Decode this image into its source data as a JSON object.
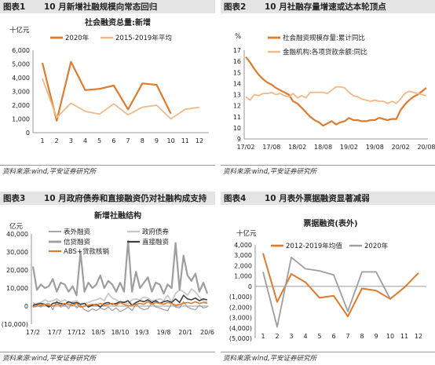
{
  "colors": {
    "orange": "#E07A2C",
    "peach": "#F1B987",
    "grey": "#9E9E9E",
    "dark": "#404040"
  },
  "panels": [
    {
      "num": "图表1",
      "title": "10 月新增社融规模向常态回归",
      "source": "资料来源:wind,平安证券研究所"
    },
    {
      "num": "图表2",
      "title": "10 月社融存量增速或达本轮顶点",
      "source": "资料来源:wind,平安证券研究所"
    },
    {
      "num": "图表3",
      "title": "10 月政府债券和直接融资仍对社融构成支持",
      "source": "资料来源:wind,平安证券研究所"
    },
    {
      "num": "图表4",
      "title": "10 月表外票据融资显著减弱",
      "source": "资料来源:wind,平安证券研究所"
    }
  ],
  "chart_data": [
    {
      "type": "line",
      "title": "社会融资总量:新增",
      "unit": "十亿元",
      "categories": [
        "1",
        "2",
        "3",
        "4",
        "5",
        "6",
        "7",
        "8",
        "9",
        "10",
        "11",
        "12"
      ],
      "yticks": [
        "0",
        "1,000",
        "2,000",
        "3,000",
        "4,000",
        "5,000",
        "6,000"
      ],
      "ylim": [
        0,
        6000
      ],
      "series": [
        {
          "name": "2020年",
          "values": [
            5080,
            870,
            5160,
            3100,
            3190,
            3430,
            1690,
            3580,
            3480,
            1390,
            null,
            null
          ]
        },
        {
          "name": "2015-2019年平均",
          "values": [
            3950,
            1100,
            2150,
            1550,
            1350,
            2100,
            1300,
            1850,
            2000,
            1000,
            1700,
            1850
          ]
        }
      ]
    },
    {
      "type": "line",
      "unit": "%",
      "xticks": [
        "17/02",
        "17/08",
        "18/02",
        "18/08",
        "19/02",
        "19/08",
        "20/02",
        "20/08"
      ],
      "yticks": [
        "9",
        "10",
        "11",
        "12",
        "13",
        "14",
        "15",
        "16",
        "17"
      ],
      "ylim": [
        9,
        17
      ],
      "series": [
        {
          "name": "社会融资规模存量:累计同比",
          "values": [
            16.4,
            15.9,
            15.3,
            14.8,
            14.4,
            14.1,
            13.9,
            13.6,
            13.4,
            13.2,
            13.0,
            12.4,
            12.2,
            11.8,
            11.4,
            11.0,
            10.7,
            10.5,
            10.2,
            10.4,
            10.6,
            10.3,
            10.5,
            10.6,
            10.9,
            10.7,
            10.7,
            10.6,
            10.6,
            10.7,
            10.7,
            10.9,
            10.8,
            10.7,
            10.8,
            10.8,
            11.6,
            12.1,
            12.5,
            12.8,
            13.0,
            13.3,
            13.6
          ]
        },
        {
          "name": "金融机构:各项贷款余额:同比",
          "values": [
            12.8,
            12.5,
            13.0,
            12.9,
            13.1,
            13.1,
            13.2,
            13.0,
            13.1,
            12.9,
            12.8,
            13.1,
            12.7,
            12.9,
            12.7,
            13.2,
            13.2,
            13.2,
            13.2,
            13.1,
            13.4,
            13.7,
            13.7,
            13.6,
            13.2,
            12.9,
            12.8,
            12.6,
            12.5,
            12.4,
            12.5,
            12.4,
            12.4,
            12.2,
            12.4,
            12.2,
            12.6,
            13.1,
            13.3,
            13.2,
            13.1,
            13.0,
            12.9
          ]
        }
      ]
    },
    {
      "type": "line",
      "title": "新增社融结构",
      "unit": "亿元",
      "xticks": [
        "17/2",
        "17/7",
        "17/12",
        "18/5",
        "18/10",
        "19/3",
        "19/8",
        "20/1",
        "20/6"
      ],
      "yticks": [
        "(10,000)",
        "0",
        "10,000",
        "20,000",
        "30,000",
        "40,000"
      ],
      "ylim": [
        -10000,
        40000
      ],
      "series": [
        {
          "name": "表外融资",
          "values": [
            2000,
            500,
            -500,
            1000,
            1500,
            -2000,
            3000,
            -500,
            1000,
            -1500,
            2500,
            -1000,
            500,
            -2000,
            -3000,
            -1500,
            -2500,
            -1000,
            -2000,
            -500,
            -2500,
            -1000,
            -3000,
            -2000,
            -500,
            -2500,
            1000,
            -1000,
            -2000,
            -1500,
            2000,
            -500,
            -1000,
            -2000,
            -2500,
            1500,
            -500,
            -1000,
            2500,
            -500,
            -1500,
            -2000,
            500,
            -1000,
            -500
          ]
        },
        {
          "name": "政府债券",
          "values": [
            500,
            1500,
            2000,
            3500,
            2500,
            3000,
            4000,
            2500,
            3500,
            2000,
            2500,
            3000,
            1000,
            1500,
            2000,
            3000,
            3500,
            4500,
            3000,
            7000,
            4500,
            3500,
            2000,
            2500,
            1000,
            3500,
            4000,
            3500,
            5000,
            4500,
            3000,
            3500,
            4000,
            3000,
            6000,
            2500,
            7000,
            9000,
            8000,
            6000,
            9500,
            8000,
            5000,
            3000,
            2000
          ]
        },
        {
          "name": "信贷融资",
          "values": [
            22000,
            9000,
            12000,
            10000,
            11000,
            15000,
            8000,
            13000,
            12000,
            8000,
            11000,
            6000,
            30000,
            8000,
            13000,
            10000,
            12000,
            17000,
            10000,
            14000,
            12000,
            8000,
            13000,
            8000,
            36000,
            8000,
            19000,
            10000,
            13000,
            16000,
            8000,
            13000,
            12000,
            7000,
            12000,
            10000,
            35000,
            9000,
            28000,
            17000,
            14000,
            18000,
            8000,
            13000,
            7000
          ]
        },
        {
          "name": "直接融资",
          "values": [
            500,
            1000,
            1500,
            1000,
            -500,
            1500,
            2000,
            1500,
            1000,
            2500,
            1500,
            2000,
            1000,
            1500,
            -500,
            500,
            1000,
            -500,
            1500,
            2000,
            1000,
            1500,
            2500,
            2000,
            3000,
            500,
            2000,
            3000,
            2500,
            3500,
            2000,
            3000,
            1500,
            2500,
            3000,
            2000,
            4000,
            2000,
            6000,
            4000,
            3500,
            4500,
            3000,
            4000,
            3500
          ]
        },
        {
          "name": "ABS+贷款核销",
          "values": [
            -500,
            0,
            500,
            1000,
            500,
            0,
            1000,
            500,
            1500,
            1000,
            500,
            1500,
            -500,
            0,
            500,
            1000,
            500,
            1500,
            500,
            1000,
            1500,
            500,
            2000,
            1000,
            0,
            500,
            1000,
            1500,
            1000,
            2500,
            1000,
            2000,
            1500,
            1000,
            2000,
            1500,
            500,
            1000,
            1500,
            2000,
            1500,
            2500,
            1500,
            2000,
            1500
          ]
        }
      ]
    },
    {
      "type": "line",
      "title": "票据融资(表外)",
      "unit": "十亿元",
      "categories": [
        "1",
        "2",
        "3",
        "4",
        "5",
        "6",
        "7",
        "8",
        "9",
        "10",
        "11",
        "12"
      ],
      "yticks": [
        "(5,000)",
        "(4,000)",
        "(3,000)",
        "(2,000)",
        "(1,000)",
        "0",
        "1,000",
        "2,000",
        "3,000",
        "4,000"
      ],
      "ylim": [
        -5000,
        4000
      ],
      "series": [
        {
          "name": "2012-2019年均值",
          "values": [
            3200,
            -1500,
            1200,
            400,
            -1100,
            -900,
            -2900,
            -200,
            -400,
            -1200,
            -100,
            1300
          ]
        },
        {
          "name": "2020年",
          "values": [
            1400,
            -3900,
            2800,
            1700,
            1500,
            1100,
            -2400,
            1400,
            1400,
            -1200,
            null,
            null
          ]
        }
      ]
    }
  ]
}
